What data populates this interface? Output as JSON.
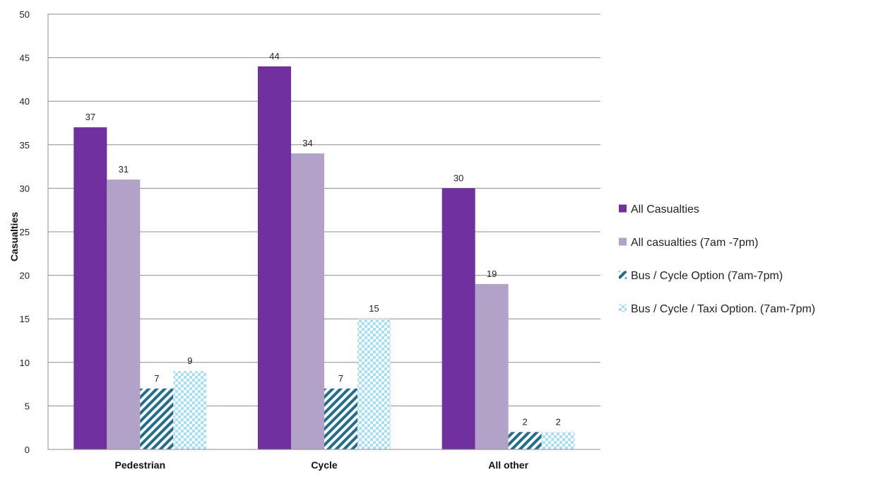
{
  "chart_data": {
    "type": "bar",
    "categories": [
      "Pedestrian",
      "Cycle",
      "All other"
    ],
    "series": [
      {
        "name": "All Casualties",
        "values": [
          37,
          44,
          30
        ]
      },
      {
        "name": "All casualties (7am -7pm)",
        "values": [
          31,
          34,
          19
        ]
      },
      {
        "name": "Bus / Cycle Option (7am-7pm)",
        "values": [
          7,
          7,
          2
        ]
      },
      {
        "name": "Bus / Cycle / Taxi Option. (7am-7pm)",
        "values": [
          9,
          15,
          2
        ]
      }
    ],
    "title": "",
    "xlabel": "",
    "ylabel": "Casualties",
    "ylim": [
      0,
      50
    ],
    "yticks": [
      0,
      5,
      10,
      15,
      20,
      25,
      30,
      35,
      40,
      45,
      50
    ],
    "grid": true,
    "legend_position": "right",
    "colors": [
      "#7030a0",
      "#b3a2c7",
      "#1f6e8c",
      "#a6e0f7"
    ],
    "fill_patterns": [
      "solid",
      "solid",
      "diagonal-stripes",
      "checkerboard"
    ]
  }
}
